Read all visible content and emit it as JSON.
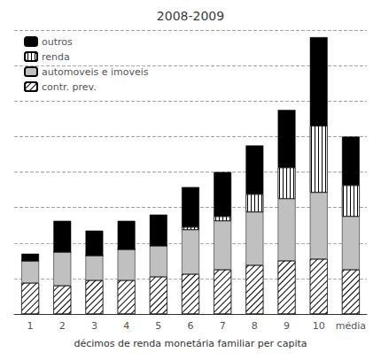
{
  "chart_data": {
    "type": "bar",
    "title": "2008-2009",
    "xlabel": "décimos de renda monetária familiar per capita",
    "categories": [
      "1",
      "2",
      "3",
      "4",
      "5",
      "6",
      "7",
      "8",
      "9",
      "10",
      "média"
    ],
    "series": [
      {
        "name": "contr. prev.",
        "color": "#ffffff",
        "values": [
          3.5,
          3.2,
          3.8,
          3.8,
          4.2,
          4.5,
          5.0,
          5.5,
          6.0,
          6.2,
          5.0
        ]
      },
      {
        "name": "automoveis e imoveis",
        "color": "#c0c0c0",
        "values": [
          2.5,
          3.8,
          2.8,
          3.5,
          3.5,
          5.0,
          5.5,
          6.0,
          7.0,
          7.5,
          6.0
        ]
      },
      {
        "name": "renda",
        "color": "#ffffff",
        "values": [
          0.0,
          0.0,
          0.0,
          0.0,
          0.0,
          0.3,
          0.5,
          2.0,
          3.5,
          7.5,
          3.5
        ]
      },
      {
        "name": "outros",
        "color": "#000000",
        "values": [
          0.8,
          3.5,
          2.8,
          3.2,
          3.5,
          4.5,
          5.0,
          5.5,
          6.5,
          10.0,
          5.5
        ]
      }
    ],
    "legend_order": [
      "outros",
      "renda",
      "automoveis e imoveis",
      "contr. prev."
    ],
    "stacked": true,
    "ylim": [
      0,
      32
    ],
    "yticks": [
      0,
      4,
      8,
      12,
      16,
      20,
      24,
      28,
      32
    ],
    "grid": true,
    "legend": "upper left",
    "tick_labels": "x"
  }
}
